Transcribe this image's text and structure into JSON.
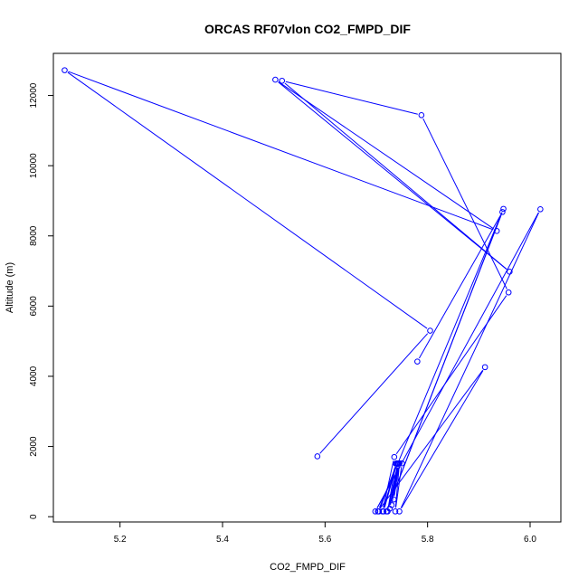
{
  "chart_data": {
    "type": "line",
    "title": "ORCAS RF07vlon CO2_FMPD_DIF",
    "xlabel": "CO2_FMPD_DIF",
    "ylabel": "Altitude (m)",
    "xlim": [
      5.07,
      6.06
    ],
    "ylim": [
      -150,
      13200
    ],
    "xticks": [
      5.2,
      5.4,
      5.6,
      5.8,
      6.0
    ],
    "xtick_labels": [
      "5.2",
      "5.4",
      "5.6",
      "5.8",
      "6.0"
    ],
    "yticks": [
      0,
      2000,
      4000,
      6000,
      8000,
      10000,
      12000
    ],
    "ytick_labels": [
      "0",
      "2000",
      "4000",
      "6000",
      "8000",
      "10000",
      "12000"
    ],
    "grid": false,
    "series": [
      {
        "color": "#0000ff",
        "x": [
          5.585,
          5.805,
          5.092,
          5.935,
          5.503,
          5.96,
          5.516,
          5.788,
          5.958,
          5.735,
          5.712,
          5.74,
          5.705,
          5.74,
          5.714,
          5.738,
          5.722,
          5.742,
          5.726,
          5.742,
          5.73,
          5.743,
          5.734,
          5.745,
          5.737,
          5.75,
          5.698,
          6.02,
          5.745,
          5.912,
          5.703,
          5.948,
          5.72,
          5.946,
          5.78
        ],
        "y": [
          1720,
          5300,
          12720,
          8140,
          12450,
          6980,
          12420,
          11440,
          6390,
          1700,
          150,
          1520,
          150,
          1510,
          150,
          1510,
          150,
          1510,
          230,
          1510,
          330,
          1510,
          490,
          1520,
          150,
          1520,
          150,
          8760,
          150,
          4260,
          150,
          8770,
          150,
          8680,
          4420
        ]
      }
    ]
  }
}
